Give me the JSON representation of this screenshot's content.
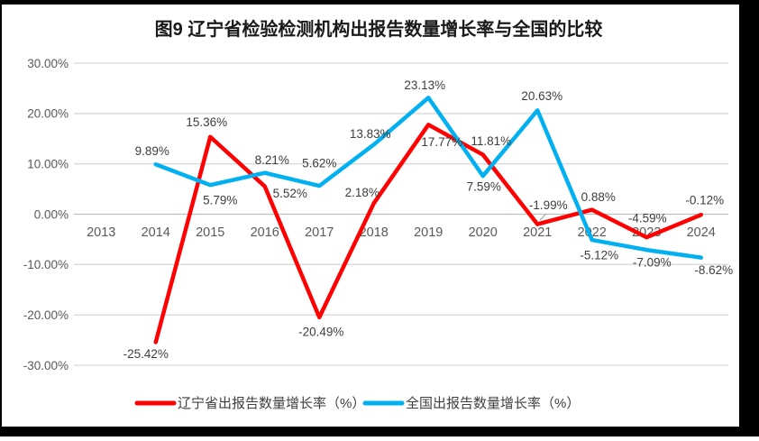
{
  "title": "图9  辽宁省检验检测机构出报告数量增长率与全国的比较",
  "colors": {
    "liaoning": "#ff0000",
    "national": "#00b0f0",
    "grid": "#d9d9d9",
    "zero_line": "#bfbfbf",
    "axis_text": "#595959",
    "label_text": "#3d3d3d",
    "frame": "#000000",
    "background": "#ffffff"
  },
  "chart_data": {
    "type": "line",
    "categories": [
      "2013",
      "2014",
      "2015",
      "2016",
      "2017",
      "2018",
      "2019",
      "2020",
      "2021",
      "2022",
      "2023",
      "2024"
    ],
    "series": [
      {
        "name": "辽宁省出报告数量增长率（%）",
        "color_key": "liaoning",
        "start_index": 1,
        "values": [
          -25.42,
          15.36,
          5.52,
          -20.49,
          2.18,
          17.77,
          11.81,
          -1.99,
          0.88,
          -4.59,
          -0.12
        ]
      },
      {
        "name": "全国出报告数量增长率（%）",
        "color_key": "national",
        "start_index": 1,
        "values": [
          9.89,
          5.79,
          8.21,
          5.62,
          13.83,
          23.13,
          7.59,
          20.63,
          -5.12,
          -7.09,
          -8.62
        ]
      }
    ],
    "ylim": [
      -30,
      30
    ],
    "y_ticks": [
      30,
      20,
      10,
      0,
      -10,
      -20,
      -30
    ],
    "y_tick_format": "0.00%",
    "data_labels": true,
    "grid": true,
    "legend_position": "bottom"
  }
}
